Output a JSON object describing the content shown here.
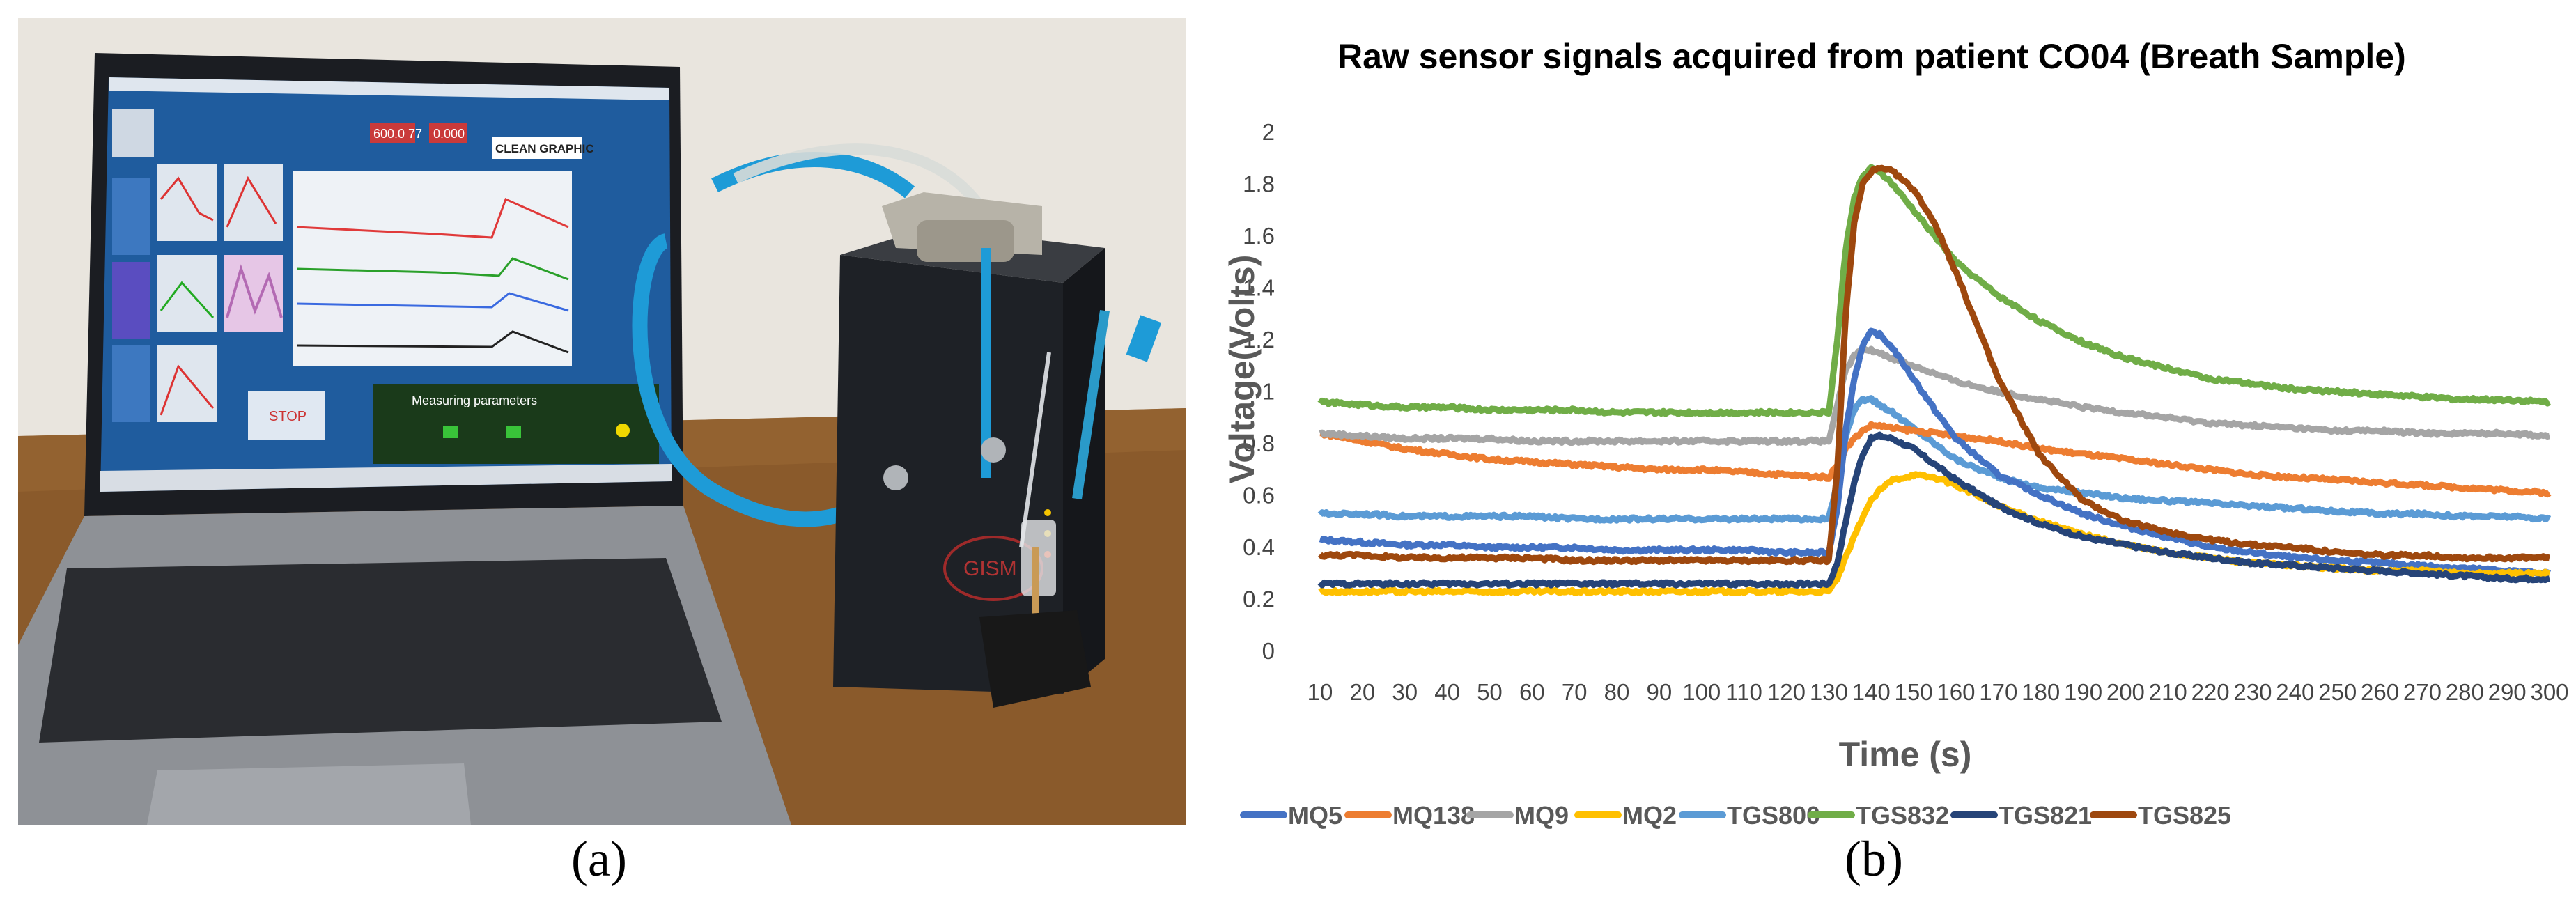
{
  "panels": {
    "a_caption": "(a)",
    "b_caption": "(b)"
  },
  "photo": {
    "screen_buttons": {
      "clean": "CLEAN GRAPHIC",
      "stop": "STOP"
    },
    "screen_title": "Measuring parameters",
    "screen_readouts": [
      "600.0 77",
      "0.000"
    ],
    "device_logo": "GISM",
    "colors": {
      "screen_bg": "#1f5c9e",
      "device": "#1e2126",
      "tube": "#1e9bd7",
      "table": "#8a5a2b"
    }
  },
  "chart_data": {
    "type": "line",
    "title": "Raw sensor signals acquired from patient CO04 (Breath Sample)",
    "xlabel": "Time (s)",
    "ylabel": "Voltage(Volts)",
    "xlim": [
      10,
      300
    ],
    "ylim": [
      0,
      2
    ],
    "x_ticks": [
      10,
      20,
      30,
      40,
      50,
      60,
      70,
      80,
      90,
      100,
      110,
      120,
      130,
      140,
      150,
      160,
      170,
      180,
      190,
      200,
      210,
      220,
      230,
      240,
      250,
      260,
      270,
      280,
      290,
      300
    ],
    "y_ticks": [
      "0",
      "0.2",
      "0.4",
      "0.6",
      "0.8",
      "1",
      "1.2",
      "1.4",
      "1.6",
      "1.8",
      "2"
    ],
    "grid": false,
    "legend_position": "bottom",
    "x": [
      10,
      20,
      30,
      40,
      50,
      60,
      70,
      80,
      90,
      100,
      110,
      120,
      130,
      132,
      134,
      136,
      138,
      140,
      142,
      145,
      150,
      155,
      160,
      170,
      180,
      190,
      200,
      210,
      220,
      230,
      240,
      250,
      260,
      270,
      280,
      290,
      300
    ],
    "series": [
      {
        "name": "MQ5",
        "color": "#4472c4",
        "values": [
          0.43,
          0.42,
          0.41,
          0.41,
          0.4,
          0.4,
          0.4,
          0.39,
          0.39,
          0.39,
          0.39,
          0.38,
          0.38,
          0.55,
          0.85,
          1.05,
          1.18,
          1.23,
          1.22,
          1.17,
          1.05,
          0.93,
          0.82,
          0.68,
          0.6,
          0.53,
          0.48,
          0.44,
          0.4,
          0.38,
          0.36,
          0.35,
          0.34,
          0.33,
          0.32,
          0.31,
          0.3
        ]
      },
      {
        "name": "MQ138",
        "color": "#ed7d31",
        "values": [
          0.84,
          0.81,
          0.78,
          0.76,
          0.74,
          0.73,
          0.72,
          0.71,
          0.7,
          0.7,
          0.69,
          0.68,
          0.67,
          0.72,
          0.78,
          0.82,
          0.85,
          0.87,
          0.87,
          0.86,
          0.85,
          0.84,
          0.83,
          0.81,
          0.78,
          0.76,
          0.74,
          0.72,
          0.7,
          0.68,
          0.67,
          0.66,
          0.65,
          0.64,
          0.63,
          0.62,
          0.61
        ]
      },
      {
        "name": "MQ9",
        "color": "#a5a5a5",
        "values": [
          0.84,
          0.83,
          0.82,
          0.82,
          0.82,
          0.81,
          0.81,
          0.81,
          0.81,
          0.81,
          0.81,
          0.81,
          0.81,
          0.95,
          1.08,
          1.14,
          1.16,
          1.16,
          1.15,
          1.13,
          1.1,
          1.07,
          1.04,
          1.0,
          0.97,
          0.94,
          0.92,
          0.9,
          0.88,
          0.87,
          0.86,
          0.85,
          0.85,
          0.84,
          0.84,
          0.84,
          0.83
        ]
      },
      {
        "name": "MQ2",
        "color": "#ffc000",
        "values": [
          0.23,
          0.23,
          0.23,
          0.23,
          0.23,
          0.23,
          0.23,
          0.23,
          0.23,
          0.23,
          0.23,
          0.23,
          0.23,
          0.28,
          0.36,
          0.44,
          0.52,
          0.58,
          0.62,
          0.66,
          0.68,
          0.67,
          0.64,
          0.56,
          0.5,
          0.45,
          0.41,
          0.38,
          0.36,
          0.34,
          0.33,
          0.32,
          0.31,
          0.31,
          0.3,
          0.3,
          0.3
        ]
      },
      {
        "name": "TGS800",
        "color": "#5b9bd5",
        "values": [
          0.53,
          0.53,
          0.52,
          0.52,
          0.52,
          0.52,
          0.51,
          0.51,
          0.51,
          0.51,
          0.51,
          0.51,
          0.51,
          0.65,
          0.83,
          0.93,
          0.97,
          0.97,
          0.95,
          0.92,
          0.86,
          0.8,
          0.74,
          0.67,
          0.63,
          0.61,
          0.59,
          0.58,
          0.57,
          0.56,
          0.55,
          0.54,
          0.53,
          0.53,
          0.52,
          0.52,
          0.51
        ]
      },
      {
        "name": "TGS832",
        "color": "#70ad47",
        "values": [
          0.96,
          0.95,
          0.94,
          0.94,
          0.93,
          0.93,
          0.93,
          0.92,
          0.92,
          0.92,
          0.92,
          0.92,
          0.92,
          1.2,
          1.55,
          1.75,
          1.83,
          1.86,
          1.85,
          1.8,
          1.7,
          1.6,
          1.5,
          1.37,
          1.27,
          1.19,
          1.13,
          1.09,
          1.05,
          1.03,
          1.01,
          1.0,
          0.99,
          0.98,
          0.97,
          0.97,
          0.96
        ]
      },
      {
        "name": "TGS821",
        "color": "#264478",
        "values": [
          0.26,
          0.26,
          0.26,
          0.26,
          0.26,
          0.26,
          0.26,
          0.26,
          0.26,
          0.26,
          0.26,
          0.26,
          0.26,
          0.34,
          0.5,
          0.65,
          0.76,
          0.82,
          0.83,
          0.82,
          0.78,
          0.72,
          0.66,
          0.56,
          0.49,
          0.44,
          0.41,
          0.38,
          0.36,
          0.34,
          0.33,
          0.32,
          0.31,
          0.3,
          0.29,
          0.28,
          0.28
        ]
      },
      {
        "name": "TGS825",
        "color": "#9e480e",
        "values": [
          0.37,
          0.37,
          0.36,
          0.36,
          0.36,
          0.36,
          0.35,
          0.35,
          0.35,
          0.35,
          0.35,
          0.35,
          0.35,
          0.7,
          1.3,
          1.65,
          1.8,
          1.85,
          1.86,
          1.85,
          1.78,
          1.65,
          1.46,
          1.05,
          0.75,
          0.58,
          0.5,
          0.46,
          0.43,
          0.41,
          0.4,
          0.38,
          0.37,
          0.37,
          0.36,
          0.36,
          0.36
        ]
      }
    ]
  }
}
